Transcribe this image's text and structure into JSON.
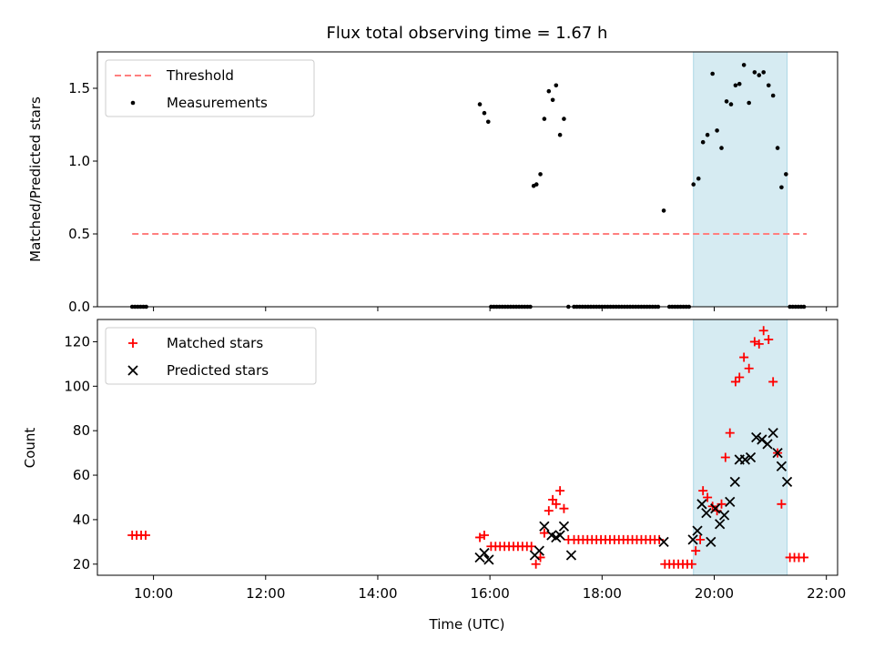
{
  "chart_data": [
    {
      "type": "scatter",
      "title": "Flux total observing time = 1.67 h",
      "xlabel": "",
      "ylabel": "Matched/Predicted stars",
      "x_unit": "hours UTC",
      "xlim": [
        9.0,
        22.2
      ],
      "ylim": [
        0,
        1.75
      ],
      "yticks": [
        0.0,
        0.5,
        1.0,
        1.5
      ],
      "ytick_labels": [
        "0.0",
        "0.5",
        "1.0",
        "1.5"
      ],
      "highlight_span": [
        19.63,
        21.3
      ],
      "legend_position": "upper-left",
      "series": [
        {
          "name": "Threshold",
          "style": "dashed-line",
          "color": "#ff7f7f",
          "x": [
            9.62,
            21.65
          ],
          "y": [
            0.5,
            0.5
          ]
        },
        {
          "name": "Measurements",
          "style": "dot",
          "color": "#000000",
          "x": [
            9.62,
            9.67,
            9.72,
            9.77,
            9.82,
            9.87,
            15.82,
            15.9,
            15.97,
            16.02,
            16.07,
            16.12,
            16.17,
            16.22,
            16.27,
            16.32,
            16.37,
            16.42,
            16.47,
            16.52,
            16.57,
            16.62,
            16.67,
            16.72,
            16.78,
            16.83,
            16.9,
            16.97,
            17.05,
            17.12,
            17.18,
            17.25,
            17.32,
            17.4,
            17.5,
            17.55,
            17.6,
            17.65,
            17.7,
            17.75,
            17.8,
            17.85,
            17.9,
            17.95,
            18.0,
            18.05,
            18.1,
            18.15,
            18.2,
            18.25,
            18.3,
            18.35,
            18.4,
            18.45,
            18.5,
            18.55,
            18.6,
            18.65,
            18.7,
            18.75,
            18.8,
            18.85,
            18.9,
            18.95,
            19.0,
            19.1,
            19.2,
            19.25,
            19.3,
            19.35,
            19.4,
            19.45,
            19.5,
            19.55,
            19.63,
            19.72,
            19.8,
            19.88,
            19.97,
            20.05,
            20.13,
            20.22,
            20.3,
            20.38,
            20.45,
            20.53,
            20.62,
            20.72,
            20.8,
            20.88,
            20.97,
            21.05,
            21.13,
            21.2,
            21.28,
            21.35,
            21.4,
            21.45,
            21.5,
            21.55,
            21.6
          ],
          "y": [
            0,
            0,
            0,
            0,
            0,
            0,
            1.39,
            1.33,
            1.27,
            0,
            0,
            0,
            0,
            0,
            0,
            0,
            0,
            0,
            0,
            0,
            0,
            0,
            0,
            0,
            0.83,
            0.84,
            0.91,
            1.29,
            1.48,
            1.42,
            1.52,
            1.18,
            1.29,
            0,
            0,
            0,
            0,
            0,
            0,
            0,
            0,
            0,
            0,
            0,
            0,
            0,
            0,
            0,
            0,
            0,
            0,
            0,
            0,
            0,
            0,
            0,
            0,
            0,
            0,
            0,
            0,
            0,
            0,
            0,
            0,
            0.66,
            0,
            0,
            0,
            0,
            0,
            0,
            0,
            0,
            0.84,
            0.88,
            1.13,
            1.18,
            1.6,
            1.21,
            1.09,
            1.41,
            1.39,
            1.52,
            1.53,
            1.66,
            1.4,
            1.61,
            1.59,
            1.61,
            1.52,
            1.45,
            1.09,
            0.82,
            0.91,
            0,
            0,
            0,
            0,
            0,
            0
          ]
        }
      ]
    },
    {
      "type": "scatter",
      "title": "",
      "xlabel": "Time (UTC)",
      "ylabel": "Count",
      "x_unit": "hours UTC",
      "xlim": [
        9.0,
        22.2
      ],
      "ylim": [
        15,
        130
      ],
      "xticks": [
        10,
        12,
        14,
        16,
        18,
        20,
        22
      ],
      "xtick_labels": [
        "10:00",
        "12:00",
        "14:00",
        "16:00",
        "18:00",
        "20:00",
        "22:00"
      ],
      "yticks": [
        20,
        40,
        60,
        80,
        100,
        120
      ],
      "ytick_labels": [
        "20",
        "40",
        "60",
        "80",
        "100",
        "120"
      ],
      "highlight_span": [
        19.63,
        21.3
      ],
      "legend_position": "upper-left",
      "series": [
        {
          "name": "Matched stars",
          "style": "plus",
          "color": "#ff0000",
          "x": [
            9.62,
            9.7,
            9.78,
            9.86,
            15.82,
            15.9,
            16.02,
            16.1,
            16.18,
            16.26,
            16.34,
            16.42,
            16.5,
            16.58,
            16.66,
            16.74,
            16.82,
            16.9,
            16.97,
            17.05,
            17.12,
            17.18,
            17.25,
            17.32,
            17.4,
            17.5,
            17.58,
            17.66,
            17.74,
            17.82,
            17.9,
            17.98,
            18.06,
            18.14,
            18.22,
            18.3,
            18.38,
            18.46,
            18.54,
            18.62,
            18.7,
            18.78,
            18.86,
            18.94,
            19.02,
            19.12,
            19.2,
            19.28,
            19.36,
            19.44,
            19.52,
            19.6,
            19.67,
            19.75,
            19.8,
            19.88,
            19.97,
            20.05,
            20.13,
            20.2,
            20.28,
            20.38,
            20.45,
            20.53,
            20.62,
            20.72,
            20.8,
            20.88,
            20.97,
            21.05,
            21.13,
            21.2,
            21.35,
            21.43,
            21.51,
            21.6
          ],
          "y": [
            33,
            33,
            33,
            33,
            32,
            33,
            28,
            28,
            28,
            28,
            28,
            28,
            28,
            28,
            28,
            28,
            20,
            23,
            34,
            44,
            49,
            47,
            53,
            45,
            31,
            31,
            31,
            31,
            31,
            31,
            31,
            31,
            31,
            31,
            31,
            31,
            31,
            31,
            31,
            31,
            31,
            31,
            31,
            31,
            31,
            20,
            20,
            20,
            20,
            20,
            20,
            20,
            26,
            31,
            53,
            50,
            46,
            44,
            47,
            68,
            79,
            102,
            104,
            113,
            108,
            120,
            119,
            125,
            121,
            102,
            70,
            47,
            23,
            23,
            23,
            23
          ]
        },
        {
          "name": "Predicted stars",
          "style": "x",
          "color": "#000000",
          "x": [
            15.82,
            15.9,
            15.98,
            16.8,
            16.88,
            16.97,
            17.1,
            17.18,
            17.25,
            17.32,
            17.45,
            19.1,
            19.62,
            19.7,
            19.78,
            19.86,
            19.94,
            20.02,
            20.1,
            20.18,
            20.28,
            20.37,
            20.45,
            20.55,
            20.65,
            20.75,
            20.85,
            20.95,
            21.05,
            21.13,
            21.2,
            21.3
          ],
          "y": [
            23,
            25,
            22,
            24,
            26,
            37,
            33,
            32,
            33,
            37,
            24,
            30,
            31,
            35,
            47,
            43,
            30,
            45,
            38,
            42,
            48,
            57,
            67,
            67,
            68,
            77,
            76,
            74,
            79,
            70,
            64,
            57
          ]
        }
      ]
    }
  ]
}
